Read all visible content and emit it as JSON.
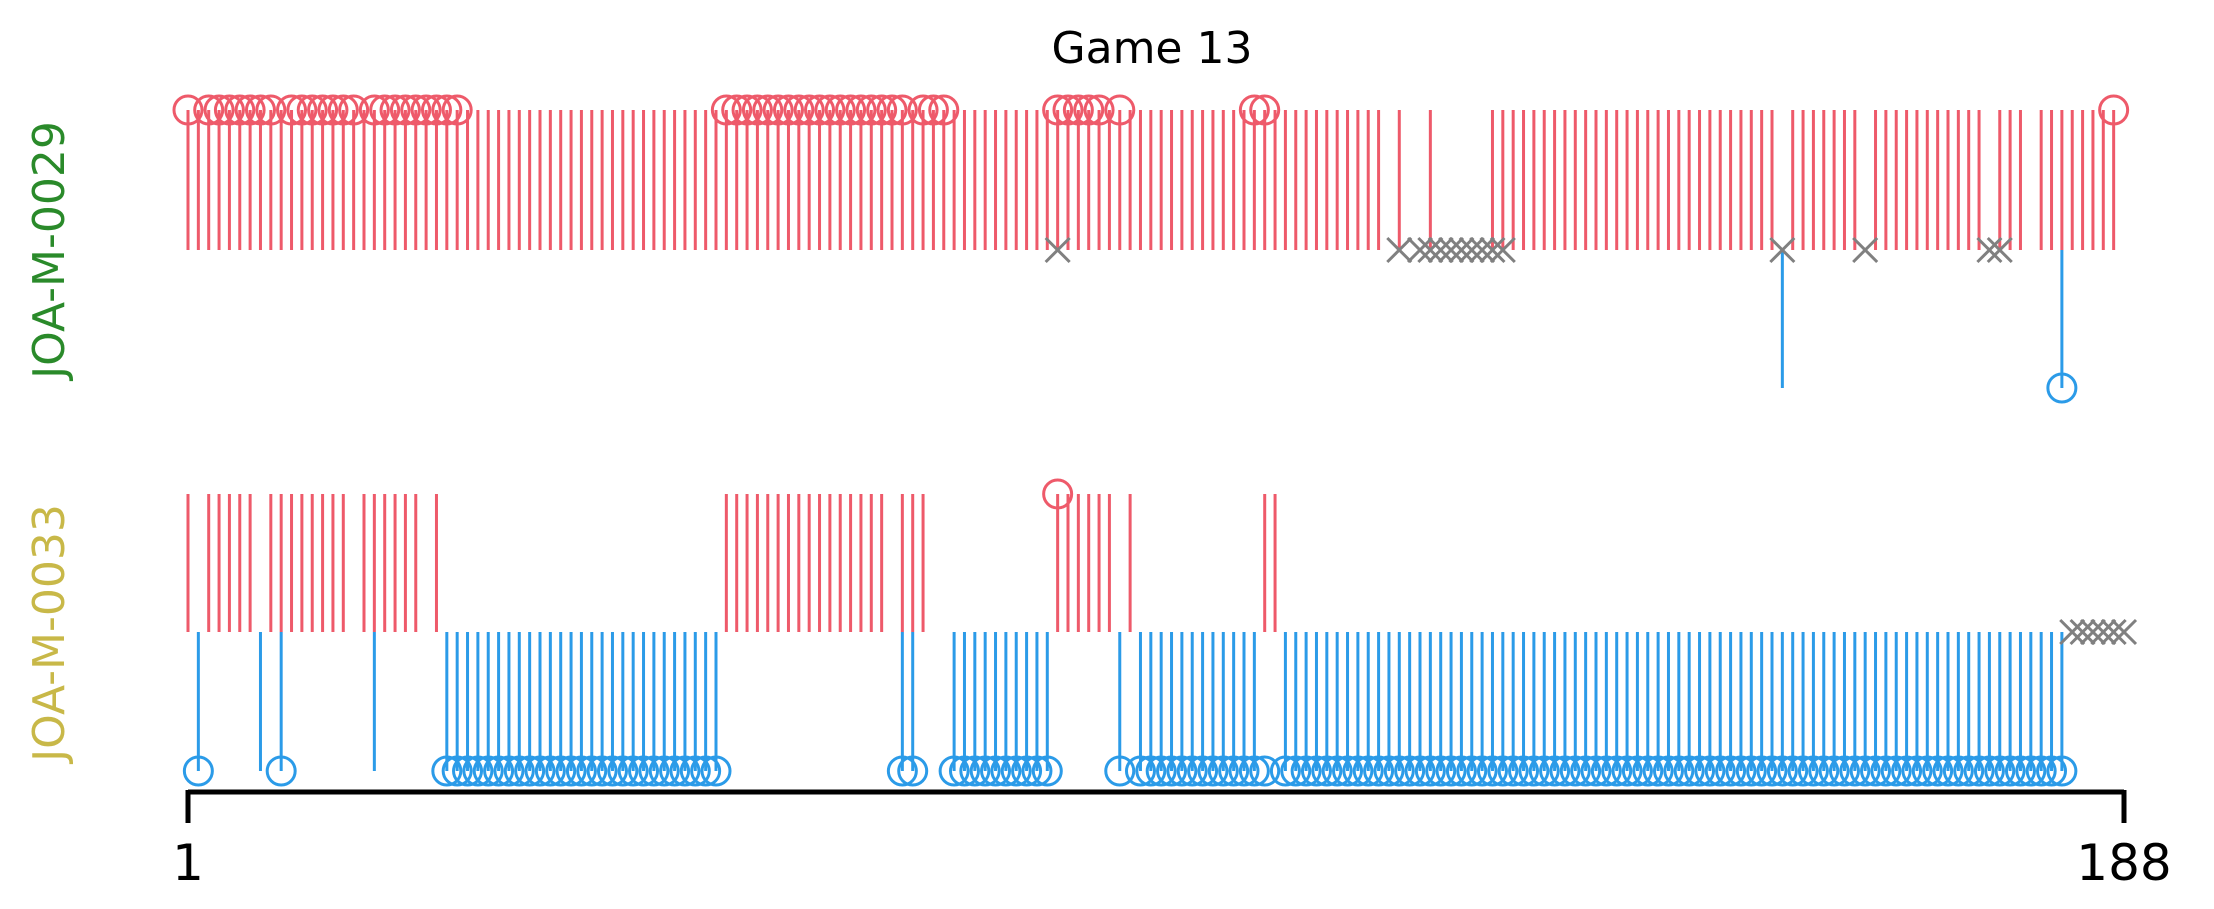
{
  "chart_data": {
    "type": "event-raster",
    "title": "Game 13",
    "x_range": [
      1,
      188
    ],
    "x_ticks": [
      "1",
      "188"
    ],
    "grid": false,
    "colors": {
      "positive": "#ee5a6a",
      "negative": "#2b9be8",
      "missed": "#808080",
      "row1_label": "#2a8a2a",
      "row2_label": "#c8b848"
    },
    "rows": [
      {
        "label": "JOA-M-0029",
        "positive": {
          "hits": [
            1,
            2,
            3,
            4,
            5,
            6,
            7,
            8,
            9,
            10,
            11,
            12,
            13,
            14,
            15,
            16,
            17,
            18,
            19,
            20,
            21,
            22,
            23,
            24,
            25,
            26,
            27,
            28,
            29,
            30,
            31,
            32,
            33,
            34,
            35,
            36,
            37,
            38,
            39,
            40,
            41,
            42,
            43,
            44,
            45,
            46,
            47,
            48,
            49,
            50,
            51,
            52,
            53,
            54,
            55,
            56,
            57,
            58,
            59,
            60,
            61,
            62,
            63,
            64,
            65,
            66,
            67,
            68,
            69,
            70,
            71,
            72,
            73,
            74,
            75,
            76,
            77,
            78,
            79,
            80,
            81,
            82,
            83,
            84,
            85,
            86,
            87,
            88,
            89,
            90,
            91,
            92,
            93,
            94,
            95,
            96,
            97,
            98,
            99,
            100,
            101,
            102,
            103,
            104,
            105,
            106,
            107,
            108,
            109,
            110,
            111,
            112,
            113,
            114,
            115,
            116,
            118,
            121,
            127,
            128,
            129,
            130,
            131,
            132,
            133,
            134,
            135,
            136,
            137,
            138,
            139,
            140,
            141,
            142,
            143,
            144,
            145,
            146,
            147,
            148,
            149,
            150,
            151,
            152,
            153,
            154,
            156,
            157,
            158,
            159,
            160,
            161,
            162,
            164,
            165,
            166,
            167,
            168,
            169,
            170,
            171,
            172,
            173,
            174,
            176,
            177,
            178,
            180,
            181,
            182,
            183,
            184,
            185,
            186,
            187
          ],
          "circles": [
            1,
            3,
            4,
            5,
            6,
            7,
            8,
            9,
            11,
            12,
            13,
            14,
            15,
            16,
            17,
            19,
            20,
            21,
            22,
            23,
            24,
            25,
            26,
            27,
            53,
            54,
            55,
            56,
            57,
            58,
            59,
            60,
            61,
            62,
            63,
            64,
            65,
            66,
            67,
            68,
            69,
            70,
            72,
            73,
            74,
            85,
            86,
            87,
            88,
            89,
            91,
            104,
            105,
            187
          ]
        },
        "negative": {
          "hits": [
            155,
            182
          ],
          "circles": [
            182
          ]
        },
        "missed": [
          85,
          118,
          120,
          121,
          122,
          123,
          124,
          125,
          126,
          127,
          128,
          155,
          163,
          175,
          176
        ]
      },
      {
        "label": "JOA-M-0033",
        "positive": {
          "hits": [
            1,
            3,
            4,
            5,
            6,
            7,
            9,
            10,
            11,
            12,
            13,
            14,
            15,
            16,
            18,
            19,
            20,
            21,
            22,
            23,
            25,
            53,
            54,
            55,
            56,
            57,
            58,
            59,
            60,
            61,
            62,
            63,
            64,
            65,
            66,
            67,
            68,
            70,
            71,
            72,
            85,
            86,
            87,
            88,
            89,
            90,
            92,
            105,
            106
          ],
          "circles": [
            85
          ]
        },
        "negative": {
          "hits": [
            2,
            8,
            10,
            19,
            26,
            27,
            28,
            29,
            30,
            31,
            32,
            33,
            34,
            35,
            36,
            37,
            38,
            39,
            40,
            41,
            42,
            43,
            44,
            45,
            46,
            47,
            48,
            49,
            50,
            51,
            52,
            70,
            71,
            75,
            76,
            77,
            78,
            79,
            80,
            81,
            82,
            83,
            84,
            91,
            93,
            94,
            95,
            96,
            97,
            98,
            99,
            100,
            101,
            102,
            103,
            104,
            107,
            108,
            109,
            110,
            111,
            112,
            113,
            114,
            115,
            116,
            117,
            118,
            119,
            120,
            121,
            122,
            123,
            124,
            125,
            126,
            127,
            128,
            129,
            130,
            131,
            132,
            133,
            134,
            135,
            136,
            137,
            138,
            139,
            140,
            141,
            142,
            143,
            144,
            145,
            146,
            147,
            148,
            149,
            150,
            151,
            152,
            153,
            154,
            155,
            156,
            157,
            158,
            159,
            160,
            161,
            162,
            163,
            164,
            165,
            166,
            167,
            168,
            169,
            170,
            171,
            172,
            173,
            174,
            175,
            176,
            177,
            178,
            179,
            180,
            181,
            182
          ],
          "circles": [
            2,
            10,
            26,
            27,
            28,
            29,
            30,
            31,
            32,
            33,
            34,
            35,
            36,
            37,
            38,
            39,
            40,
            41,
            42,
            43,
            44,
            45,
            46,
            47,
            48,
            49,
            50,
            51,
            52,
            70,
            71,
            75,
            76,
            77,
            78,
            79,
            80,
            81,
            82,
            83,
            84,
            91,
            93,
            94,
            95,
            96,
            97,
            98,
            99,
            100,
            101,
            102,
            103,
            104,
            105,
            107,
            108,
            109,
            110,
            111,
            112,
            113,
            114,
            115,
            116,
            117,
            118,
            119,
            120,
            121,
            122,
            123,
            124,
            125,
            126,
            127,
            128,
            129,
            130,
            131,
            132,
            133,
            134,
            135,
            136,
            137,
            138,
            139,
            140,
            141,
            142,
            143,
            144,
            145,
            146,
            147,
            148,
            149,
            150,
            151,
            152,
            153,
            154,
            155,
            156,
            157,
            158,
            159,
            160,
            161,
            162,
            163,
            164,
            165,
            166,
            167,
            168,
            169,
            170,
            171,
            172,
            173,
            174,
            175,
            176,
            177,
            178,
            179,
            180,
            181,
            182
          ]
        },
        "missed": [
          183,
          184,
          185,
          186,
          187,
          188
        ]
      }
    ]
  }
}
